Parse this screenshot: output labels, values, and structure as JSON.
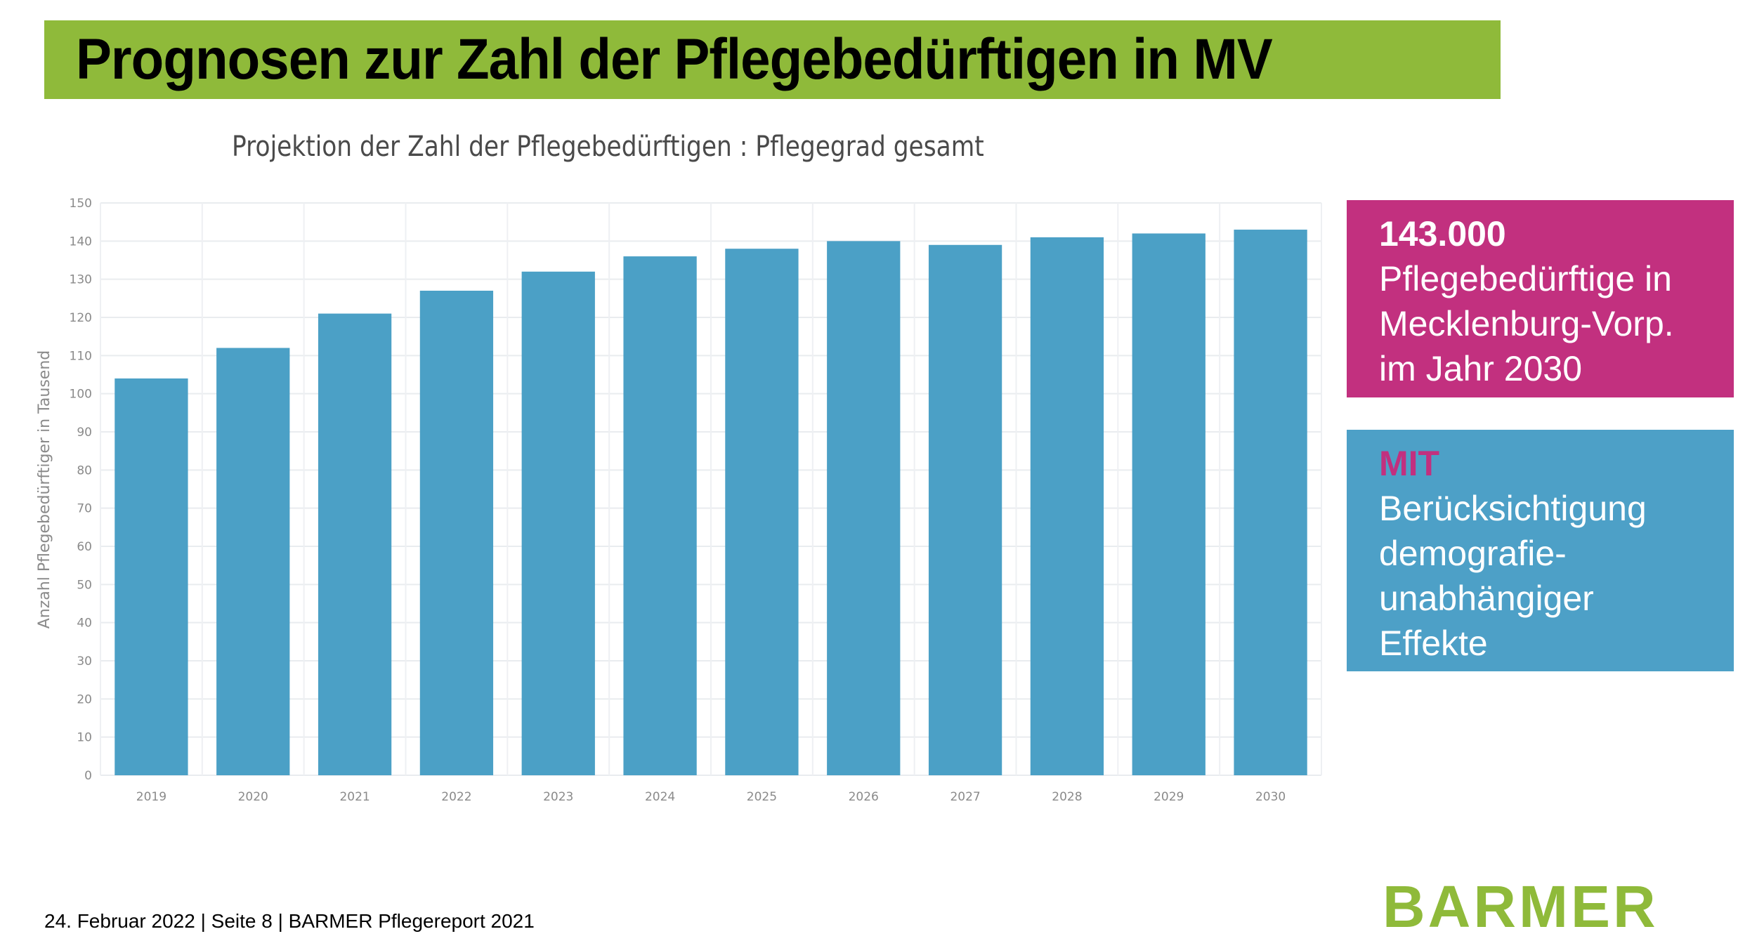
{
  "slide": {
    "title": "Prognosen zur Zahl der Pflegebedürftigen in MV",
    "footer": "24. Februar 2022 | Seite 8 | BARMER Pflegereport 2021",
    "logo_text": "BARMER"
  },
  "colors": {
    "brand_green": "#8fba3a",
    "accent_pink": "#c2307f",
    "accent_blue": "#4da0c7",
    "bar_color": "#4ba0c6"
  },
  "callouts": {
    "pink": {
      "headline": "143.000",
      "lines": [
        "Pflegebedürftige in",
        "Mecklenburg-Vorp.",
        "im Jahr 2030"
      ]
    },
    "blue": {
      "headline": "MIT",
      "lines": [
        "Berücksichtigung",
        "demografie-",
        "unabhängiger",
        "Effekte"
      ]
    }
  },
  "chart_data": {
    "type": "bar",
    "title": "Projektion der Zahl der Pflegebedürftigen : Pflegegrad gesamt",
    "xlabel": "",
    "ylabel": "Anzahl Pflegebedürftiger in Tausend",
    "categories": [
      "2019",
      "2020",
      "2021",
      "2022",
      "2023",
      "2024",
      "2025",
      "2026",
      "2027",
      "2028",
      "2029",
      "2030"
    ],
    "values": [
      104,
      112,
      121,
      127,
      132,
      136,
      138,
      140,
      139,
      141,
      142,
      143
    ],
    "ylim": [
      0,
      150
    ],
    "yticks": [
      0,
      10,
      20,
      30,
      40,
      50,
      60,
      70,
      80,
      90,
      100,
      110,
      120,
      130,
      140,
      150
    ],
    "grid": true,
    "legend": "none"
  }
}
